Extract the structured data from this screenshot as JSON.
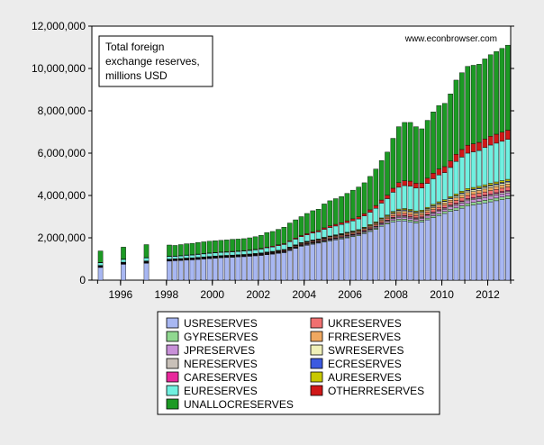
{
  "chart_data": {
    "type": "bar",
    "stacked": true,
    "title": "Total foreign exchange reserves, millions USD",
    "title_lines": [
      "Total foreign",
      "exchange reserves,",
      "millions USD"
    ],
    "watermark": "www.econbrowser.com",
    "xlabel": "",
    "ylabel": "",
    "ylim": [
      0,
      12000000
    ],
    "y_ticks": [
      0,
      2000000,
      4000000,
      6000000,
      8000000,
      10000000,
      12000000
    ],
    "y_tick_labels": [
      "0",
      "2,000,000",
      "4,000,000",
      "6,000,000",
      "8,000,000",
      "10,000,000",
      "12,000,000"
    ],
    "x_ticks": [
      1996,
      1998,
      2000,
      2002,
      2004,
      2006,
      2008,
      2010,
      2012
    ],
    "x_tick_labels": [
      "1996",
      "1998",
      "2000",
      "2002",
      "2004",
      "2006",
      "2008",
      "2010",
      "2012"
    ],
    "xlim": [
      1994.75,
      2013.0
    ],
    "frequency": "quarterly",
    "grid": false,
    "legend_position": "bottom",
    "periods": [
      {
        "year": 1995,
        "q": 1,
        "tot": 1380000,
        "us": 600000
      },
      {
        "year": 1996,
        "q": 1,
        "tot": 1560000,
        "us": 750000
      },
      {
        "year": 1997,
        "q": 1,
        "tot": 1680000,
        "us": 800000
      },
      {
        "year": 1998,
        "q": 1,
        "tot": 1660000,
        "us": 900000
      },
      {
        "year": 1998,
        "q": 2,
        "tot": 1640000,
        "us": 920000
      },
      {
        "year": 1998,
        "q": 3,
        "tot": 1680000,
        "us": 930000
      },
      {
        "year": 1998,
        "q": 4,
        "tot": 1720000,
        "us": 950000
      },
      {
        "year": 1999,
        "q": 1,
        "tot": 1740000,
        "us": 960000
      },
      {
        "year": 1999,
        "q": 2,
        "tot": 1780000,
        "us": 980000
      },
      {
        "year": 1999,
        "q": 3,
        "tot": 1810000,
        "us": 1000000
      },
      {
        "year": 1999,
        "q": 4,
        "tot": 1840000,
        "us": 1020000
      },
      {
        "year": 2000,
        "q": 1,
        "tot": 1860000,
        "us": 1040000
      },
      {
        "year": 2000,
        "q": 2,
        "tot": 1880000,
        "us": 1060000
      },
      {
        "year": 2000,
        "q": 3,
        "tot": 1900000,
        "us": 1070000
      },
      {
        "year": 2000,
        "q": 4,
        "tot": 1930000,
        "us": 1080000
      },
      {
        "year": 2001,
        "q": 1,
        "tot": 1940000,
        "us": 1100000
      },
      {
        "year": 2001,
        "q": 2,
        "tot": 1960000,
        "us": 1110000
      },
      {
        "year": 2001,
        "q": 3,
        "tot": 2000000,
        "us": 1130000
      },
      {
        "year": 2001,
        "q": 4,
        "tot": 2050000,
        "us": 1150000
      },
      {
        "year": 2002,
        "q": 1,
        "tot": 2120000,
        "us": 1170000
      },
      {
        "year": 2002,
        "q": 2,
        "tot": 2250000,
        "us": 1200000
      },
      {
        "year": 2002,
        "q": 3,
        "tot": 2300000,
        "us": 1230000
      },
      {
        "year": 2002,
        "q": 4,
        "tot": 2400000,
        "us": 1270000
      },
      {
        "year": 2003,
        "q": 1,
        "tot": 2500000,
        "us": 1300000
      },
      {
        "year": 2003,
        "q": 2,
        "tot": 2700000,
        "us": 1400000
      },
      {
        "year": 2003,
        "q": 3,
        "tot": 2850000,
        "us": 1500000
      },
      {
        "year": 2003,
        "q": 4,
        "tot": 3000000,
        "us": 1600000
      },
      {
        "year": 2004,
        "q": 1,
        "tot": 3150000,
        "us": 1650000
      },
      {
        "year": 2004,
        "q": 2,
        "tot": 3280000,
        "us": 1700000
      },
      {
        "year": 2004,
        "q": 3,
        "tot": 3350000,
        "us": 1750000
      },
      {
        "year": 2004,
        "q": 4,
        "tot": 3600000,
        "us": 1800000
      },
      {
        "year": 2005,
        "q": 1,
        "tot": 3750000,
        "us": 1850000
      },
      {
        "year": 2005,
        "q": 2,
        "tot": 3850000,
        "us": 1900000
      },
      {
        "year": 2005,
        "q": 3,
        "tot": 3950000,
        "us": 1950000
      },
      {
        "year": 2005,
        "q": 4,
        "tot": 4100000,
        "us": 2000000
      },
      {
        "year": 2006,
        "q": 1,
        "tot": 4250000,
        "us": 2050000
      },
      {
        "year": 2006,
        "q": 2,
        "tot": 4400000,
        "us": 2100000
      },
      {
        "year": 2006,
        "q": 3,
        "tot": 4600000,
        "us": 2200000
      },
      {
        "year": 2006,
        "q": 4,
        "tot": 4900000,
        "us": 2300000
      },
      {
        "year": 2007,
        "q": 1,
        "tot": 5250000,
        "us": 2400000
      },
      {
        "year": 2007,
        "q": 2,
        "tot": 5650000,
        "us": 2550000
      },
      {
        "year": 2007,
        "q": 3,
        "tot": 6050000,
        "us": 2650000
      },
      {
        "year": 2007,
        "q": 4,
        "tot": 6700000,
        "us": 2750000
      },
      {
        "year": 2008,
        "q": 1,
        "tot": 7250000,
        "us": 2800000
      },
      {
        "year": 2008,
        "q": 2,
        "tot": 7450000,
        "us": 2800000
      },
      {
        "year": 2008,
        "q": 3,
        "tot": 7450000,
        "us": 2750000
      },
      {
        "year": 2008,
        "q": 4,
        "tot": 7250000,
        "us": 2700000
      },
      {
        "year": 2009,
        "q": 1,
        "tot": 7150000,
        "us": 2750000
      },
      {
        "year": 2009,
        "q": 2,
        "tot": 7550000,
        "us": 2850000
      },
      {
        "year": 2009,
        "q": 3,
        "tot": 7950000,
        "us": 2950000
      },
      {
        "year": 2009,
        "q": 4,
        "tot": 8250000,
        "us": 3050000
      },
      {
        "year": 2010,
        "q": 1,
        "tot": 8350000,
        "us": 3150000
      },
      {
        "year": 2010,
        "q": 2,
        "tot": 8800000,
        "us": 3250000
      },
      {
        "year": 2010,
        "q": 3,
        "tot": 9450000,
        "us": 3300000
      },
      {
        "year": 2010,
        "q": 4,
        "tot": 9800000,
        "us": 3400000
      },
      {
        "year": 2011,
        "q": 1,
        "tot": 10100000,
        "us": 3500000
      },
      {
        "year": 2011,
        "q": 2,
        "tot": 10150000,
        "us": 3550000
      },
      {
        "year": 2011,
        "q": 3,
        "tot": 10200000,
        "us": 3600000
      },
      {
        "year": 2011,
        "q": 4,
        "tot": 10450000,
        "us": 3650000
      },
      {
        "year": 2012,
        "q": 1,
        "tot": 10650000,
        "us": 3700000
      },
      {
        "year": 2012,
        "q": 2,
        "tot": 10800000,
        "us": 3750000
      },
      {
        "year": 2012,
        "q": 3,
        "tot": 10950000,
        "us": 3800000
      },
      {
        "year": 2012,
        "q": 4,
        "tot": 11100000,
        "us": 3850000
      }
    ],
    "series": [
      {
        "name": "USRESERVES",
        "color": "#a8b7f2",
        "key": "us"
      },
      {
        "name": "GYRESERVES",
        "color": "#90d890",
        "key": "gy"
      },
      {
        "name": "JPRESERVES",
        "color": "#c890d8",
        "key": "jp"
      },
      {
        "name": "NERESERVES",
        "color": "#c8c0b8",
        "key": "ne"
      },
      {
        "name": "CARESERVES",
        "color": "#e8289c",
        "key": "ca"
      },
      {
        "name": "EURESERVES",
        "color": "#70f0e0",
        "key": "eu"
      },
      {
        "name": "UNALLOCRESERVES",
        "color": "#1c9a24",
        "key": "unalloc"
      },
      {
        "name": "UKRESERVES",
        "color": "#f07070",
        "key": "uk"
      },
      {
        "name": "FRRESERVES",
        "color": "#f0a860",
        "key": "fr"
      },
      {
        "name": "SWRESERVES",
        "color": "#f0f0b8",
        "key": "sw"
      },
      {
        "name": "ECRESERVES",
        "color": "#3c5ae0",
        "key": "ec"
      },
      {
        "name": "AURESERVES",
        "color": "#c8c800",
        "key": "au"
      },
      {
        "name": "OTHERRESERVES",
        "color": "#d01818",
        "key": "other"
      }
    ],
    "legend": {
      "columns": [
        [
          "USRESERVES",
          "GYRESERVES",
          "JPRESERVES",
          "NERESERVES",
          "CARESERVES",
          "EURESERVES",
          "UNALLOCRESERVES"
        ],
        [
          "UKRESERVES",
          "FRRESERVES",
          "SWRESERVES",
          "ECRESERVES",
          "AURESERVES",
          "OTHERRESERVES"
        ]
      ]
    },
    "colors": {
      "background": "#ececec",
      "plot_background": "#ffffff",
      "axis": "#000000"
    }
  }
}
